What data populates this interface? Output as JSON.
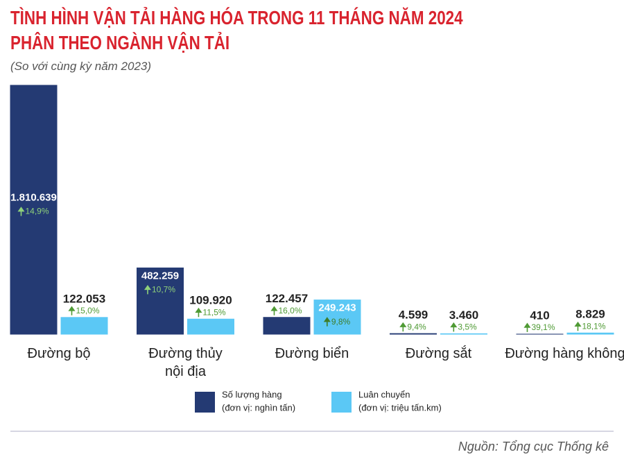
{
  "chart_data": {
    "type": "bar",
    "title": "TÌNH HÌNH VẬN TẢI HÀNG HÓA TRONG 11 THÁNG NĂM 2024\nPHÂN THEO NGÀNH VẬN TẢI",
    "subtitle": "(So với cùng kỳ năm 2023)",
    "source": "Nguồn: Tổng cục Thống kê",
    "categories": [
      "Đường bộ",
      "Đường thủy\nnội địa",
      "Đường biển",
      "Đường sắt",
      "Đường hàng không"
    ],
    "series": [
      {
        "name": "Số lượng hàng",
        "unit": "(đơn vị: nghìn tấn)",
        "color": "#243a73",
        "values": [
          1810639,
          482259,
          122457,
          4599,
          410
        ],
        "value_labels": [
          "1.810.639",
          "482.259",
          "122.457",
          "4.599",
          "410"
        ],
        "growth": [
          14.9,
          10.7,
          16.0,
          9.4,
          39.1
        ],
        "growth_labels": [
          "14,9%",
          "10,7%",
          "16,0%",
          "9,4%",
          "39,1%"
        ]
      },
      {
        "name": "Luân chuyển",
        "unit": "(đơn vị: triệu tấn.km)",
        "color": "#5bc8f5",
        "values": [
          122053,
          109920,
          249243,
          3460,
          8829
        ],
        "value_labels": [
          "122.053",
          "109.920",
          "249.243",
          "3.460",
          "8.829"
        ],
        "growth": [
          15.0,
          11.5,
          9.8,
          3.5,
          18.1
        ],
        "growth_labels": [
          "15,0%",
          "11,5%",
          "9,8%",
          "3,5%",
          "18,1%"
        ]
      }
    ]
  }
}
